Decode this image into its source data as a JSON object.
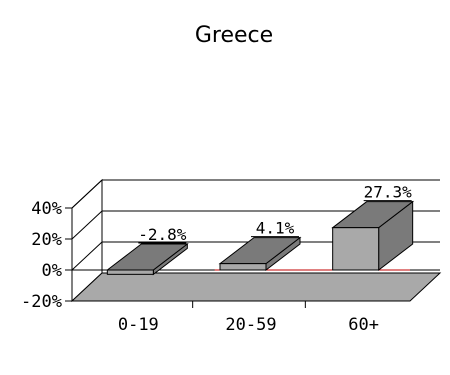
{
  "chart_data": {
    "type": "bar",
    "title": "Greece",
    "categories": [
      "0-19",
      "20-59",
      "60+"
    ],
    "values": [
      -2.8,
      4.1,
      27.3
    ],
    "data_labels": [
      "-2.8%",
      "4.1%",
      "27.3%"
    ],
    "yticks": [
      -20,
      0,
      20,
      40
    ],
    "ytick_labels": [
      "-20%",
      "0%",
      "20%",
      "40%"
    ],
    "ylim": [
      -20,
      40
    ],
    "grid": true,
    "legend": "none",
    "colors": {
      "bar_front": "#a9a9a9",
      "bar_top": "#7a7a7a",
      "bar_side": "#7a7a7a",
      "floor": "#a9a9a9",
      "zero_line": "#c00000",
      "grid": "#000000"
    }
  }
}
